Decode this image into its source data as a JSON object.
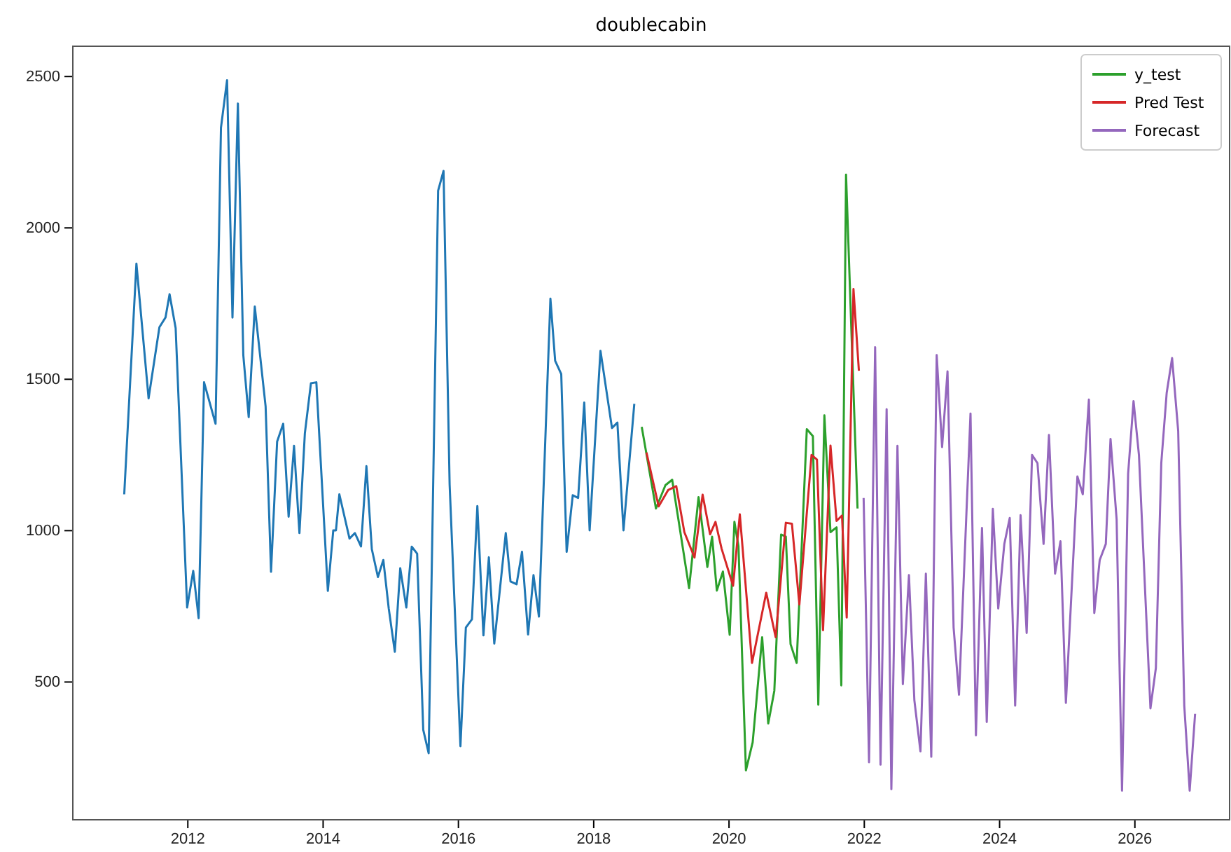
{
  "chart_data": {
    "type": "line",
    "title": "doublecabin",
    "xlim": [
      2010.3,
      2027.4
    ],
    "xticks": [
      2012,
      2014,
      2016,
      2018,
      2020,
      2022,
      2024,
      2026
    ],
    "ylim": [
      45,
      2600
    ],
    "yticks": [
      500,
      1000,
      1500,
      2000,
      2500
    ],
    "grid": false,
    "legend": "top right",
    "series": [
      {
        "color": "#1f77b4",
        "x": [
          2011.06,
          2011.24,
          2011.42,
          2011.58,
          2011.67,
          2011.73,
          2011.82,
          2011.99,
          2012.08,
          2012.16,
          2012.24,
          2012.41,
          2012.49,
          2012.58,
          2012.66,
          2012.74,
          2012.82,
          2012.9,
          2012.99,
          2013.15,
          2013.23,
          2013.32,
          2013.41,
          2013.49,
          2013.57,
          2013.65,
          2013.73,
          2013.82,
          2013.9,
          2014.07,
          2014.15,
          2014.19,
          2014.24,
          2014.39,
          2014.47,
          2014.56,
          2014.64,
          2014.72,
          2014.81,
          2014.89,
          2014.97,
          2015.06,
          2015.14,
          2015.23,
          2015.31,
          2015.39,
          2015.48,
          2015.56,
          2015.7,
          2015.78,
          2015.87,
          2016.03,
          2016.11,
          2016.2,
          2016.28,
          2016.37,
          2016.45,
          2016.53,
          2016.7,
          2016.77,
          2016.86,
          2016.94,
          2017.03,
          2017.11,
          2017.19,
          2017.36,
          2017.43,
          2017.52,
          2017.6,
          2017.69,
          2017.77,
          2017.86,
          2017.94,
          2018.1,
          2018.27,
          2018.35,
          2018.44,
          2018.6
        ],
        "values": [
          1120,
          1882,
          1437,
          1672,
          1704,
          1781,
          1669,
          746,
          867,
          711,
          1490,
          1353,
          2331,
          2488,
          1704,
          2411,
          1580,
          1375,
          1740,
          1410,
          864,
          1294,
          1353,
          1046,
          1280,
          992,
          1321,
          1487,
          1490,
          801,
          1001,
          1001,
          1120,
          974,
          992,
          948,
          1213,
          939,
          847,
          903,
          743,
          600,
          876,
          746,
          947,
          924,
          342,
          265,
          2123,
          2188,
          1153,
          288,
          680,
          707,
          1081,
          654,
          912,
          627,
          992,
          832,
          823,
          930,
          657,
          853,
          716,
          1766,
          1561,
          1517,
          930,
          1117,
          1108,
          1423,
          1001,
          1594,
          1339,
          1357,
          1001,
          1419
        ]
      },
      {
        "name": "y_test",
        "color": "#2ca02c",
        "x": [
          2018.71,
          2018.92,
          2019.06,
          2019.16,
          2019.27,
          2019.41,
          2019.55,
          2019.68,
          2019.75,
          2019.82,
          2019.91,
          2020.01,
          2020.08,
          2020.14,
          2020.25,
          2020.35,
          2020.49,
          2020.58,
          2020.67,
          2020.77,
          2020.84,
          2020.91,
          2021.0,
          2021.15,
          2021.24,
          2021.32,
          2021.41,
          2021.5,
          2021.59,
          2021.66,
          2021.73,
          2021.9
        ],
        "values": [
          1343,
          1073,
          1150,
          1168,
          1011,
          810,
          1111,
          880,
          980,
          802,
          865,
          656,
          1029,
          949,
          208,
          301,
          648,
          363,
          471,
          987,
          980,
          625,
          563,
          1335,
          1312,
          425,
          1381,
          995,
          1011,
          489,
          2176,
          1073
        ]
      },
      {
        "name": "Pred Test",
        "color": "#d62728",
        "x": [
          2018.78,
          2018.96,
          2019.1,
          2019.22,
          2019.34,
          2019.49,
          2019.61,
          2019.72,
          2019.8,
          2019.89,
          2020.06,
          2020.16,
          2020.34,
          2020.55,
          2020.69,
          2020.84,
          2020.93,
          2021.04,
          2021.22,
          2021.3,
          2021.39,
          2021.5,
          2021.59,
          2021.67,
          2021.74,
          2021.84,
          2021.92
        ],
        "values": [
          1258,
          1080,
          1134,
          1147,
          995,
          911,
          1119,
          988,
          1029,
          941,
          818,
          1054,
          563,
          795,
          648,
          1026,
          1023,
          756,
          1250,
          1235,
          671,
          1281,
          1032,
          1050,
          713,
          1798,
          1528
        ]
      },
      {
        "name": "Forecast",
        "color": "#9467bd",
        "x": [
          2021.99,
          2022.07,
          2022.16,
          2022.24,
          2022.33,
          2022.4,
          2022.49,
          2022.57,
          2022.66,
          2022.74,
          2022.83,
          2022.91,
          2022.99,
          2023.07,
          2023.15,
          2023.23,
          2023.32,
          2023.4,
          2023.57,
          2023.65,
          2023.74,
          2023.81,
          2023.9,
          2023.98,
          2024.07,
          2024.15,
          2024.23,
          2024.31,
          2024.4,
          2024.48,
          2024.56,
          2024.65,
          2024.73,
          2024.82,
          2024.9,
          2024.98,
          2025.15,
          2025.23,
          2025.32,
          2025.4,
          2025.48,
          2025.57,
          2025.64,
          2025.73,
          2025.81,
          2025.9,
          2025.98,
          2026.06,
          2026.23,
          2026.31,
          2026.39,
          2026.47,
          2026.55,
          2026.64,
          2026.73,
          2026.81,
          2026.89
        ],
        "values": [
          1108,
          235,
          1606,
          227,
          1401,
          146,
          1280,
          493,
          853,
          440,
          271,
          858,
          253,
          1580,
          1276,
          1526,
          680,
          458,
          1387,
          324,
          1009,
          368,
          1072,
          743,
          956,
          1042,
          422,
          1051,
          662,
          1250,
          1223,
          956,
          1316,
          858,
          965,
          431,
          1179,
          1120,
          1433,
          728,
          903,
          956,
          1303,
          1037,
          141,
          1188,
          1428,
          1250,
          413,
          546,
          1223,
          1455,
          1570,
          1330,
          422,
          141,
          395
        ]
      }
    ]
  }
}
